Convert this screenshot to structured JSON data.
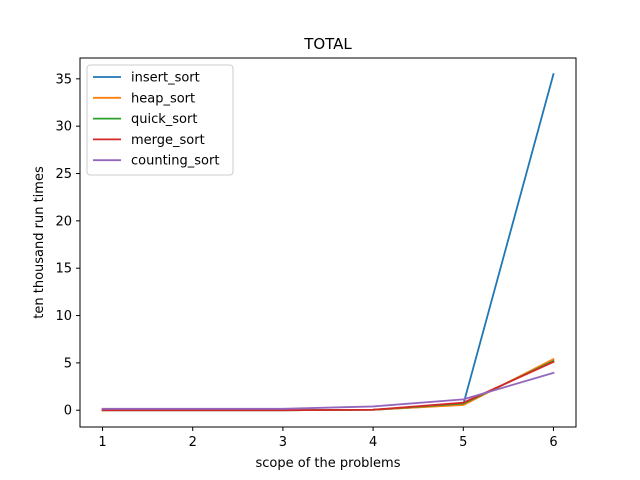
{
  "chart_data": {
    "type": "line",
    "title": "TOTAL",
    "xlabel": "scope of the problems",
    "ylabel": "ten thousand run times",
    "x": [
      1,
      2,
      3,
      4,
      5,
      6
    ],
    "xlim": [
      0.75,
      6.25
    ],
    "ylim": [
      -1.77,
      37.2
    ],
    "xticks": [
      1,
      2,
      3,
      4,
      5,
      6
    ],
    "yticks": [
      0,
      5,
      10,
      15,
      20,
      25,
      30,
      35
    ],
    "grid": false,
    "legend_position": "top-left",
    "series": [
      {
        "name": "insert_sort",
        "color": "#1f77b4",
        "values": [
          0.0,
          0.0,
          0.0,
          0.05,
          0.6,
          35.5
        ]
      },
      {
        "name": "heap_sort",
        "color": "#ff7f0e",
        "values": [
          0.0,
          0.0,
          0.0,
          0.05,
          0.55,
          5.4
        ]
      },
      {
        "name": "quick_sort",
        "color": "#2ca02c",
        "values": [
          0.0,
          0.0,
          0.0,
          0.05,
          0.7,
          5.2
        ]
      },
      {
        "name": "merge_sort",
        "color": "#d62728",
        "values": [
          0.0,
          0.0,
          0.0,
          0.05,
          0.8,
          5.1
        ]
      },
      {
        "name": "counting_sort",
        "color": "#9467bd",
        "values": [
          0.15,
          0.15,
          0.15,
          0.4,
          1.15,
          3.95
        ]
      }
    ]
  }
}
